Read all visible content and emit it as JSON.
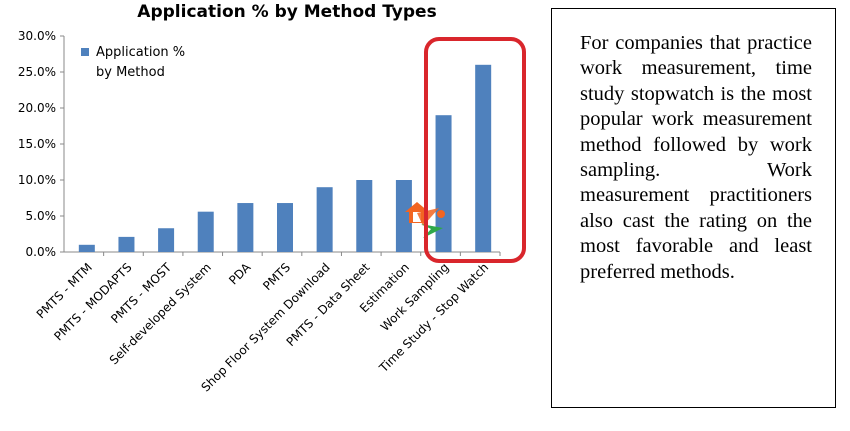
{
  "chart_data": {
    "type": "bar",
    "title": "Application % by Method Types",
    "categories": [
      "PMTS - MTM",
      "PMTS - MODAPTS",
      "PMTS - MOST",
      "Self-developed System",
      "PDA",
      "PMTS",
      "Shop Floor System Download",
      "PMTS - Data Sheet",
      "Estimation",
      "Work Sampling",
      "Time Study - Stop Watch"
    ],
    "series": [
      {
        "name": "Application % by Method",
        "values": [
          1.0,
          2.1,
          3.3,
          5.6,
          6.8,
          6.8,
          9.0,
          10.0,
          10.0,
          19.0,
          26.0
        ]
      }
    ],
    "yticks": [
      "0.0%",
      "5.0%",
      "10.0%",
      "15.0%",
      "20.0%",
      "25.0%",
      "30.0%"
    ],
    "ylim": [
      0,
      30
    ],
    "xlabel": "",
    "ylabel": "",
    "legend": {
      "label_line1": "Application %",
      "label_line2": "by Method",
      "position": "top-left"
    },
    "highlight": {
      "categories": [
        "Work Sampling",
        "Time Study - Stop Watch"
      ],
      "color": "#d9262c"
    },
    "bar_color": "#4f81bd"
  },
  "note": {
    "text": "For companies that practice work mea­surement, time study stopwatch is the most popular work measure­ment method followed by work sampling. Work measurement practitioners also cast the rating on the most favorable and least pre­ferred methods."
  }
}
